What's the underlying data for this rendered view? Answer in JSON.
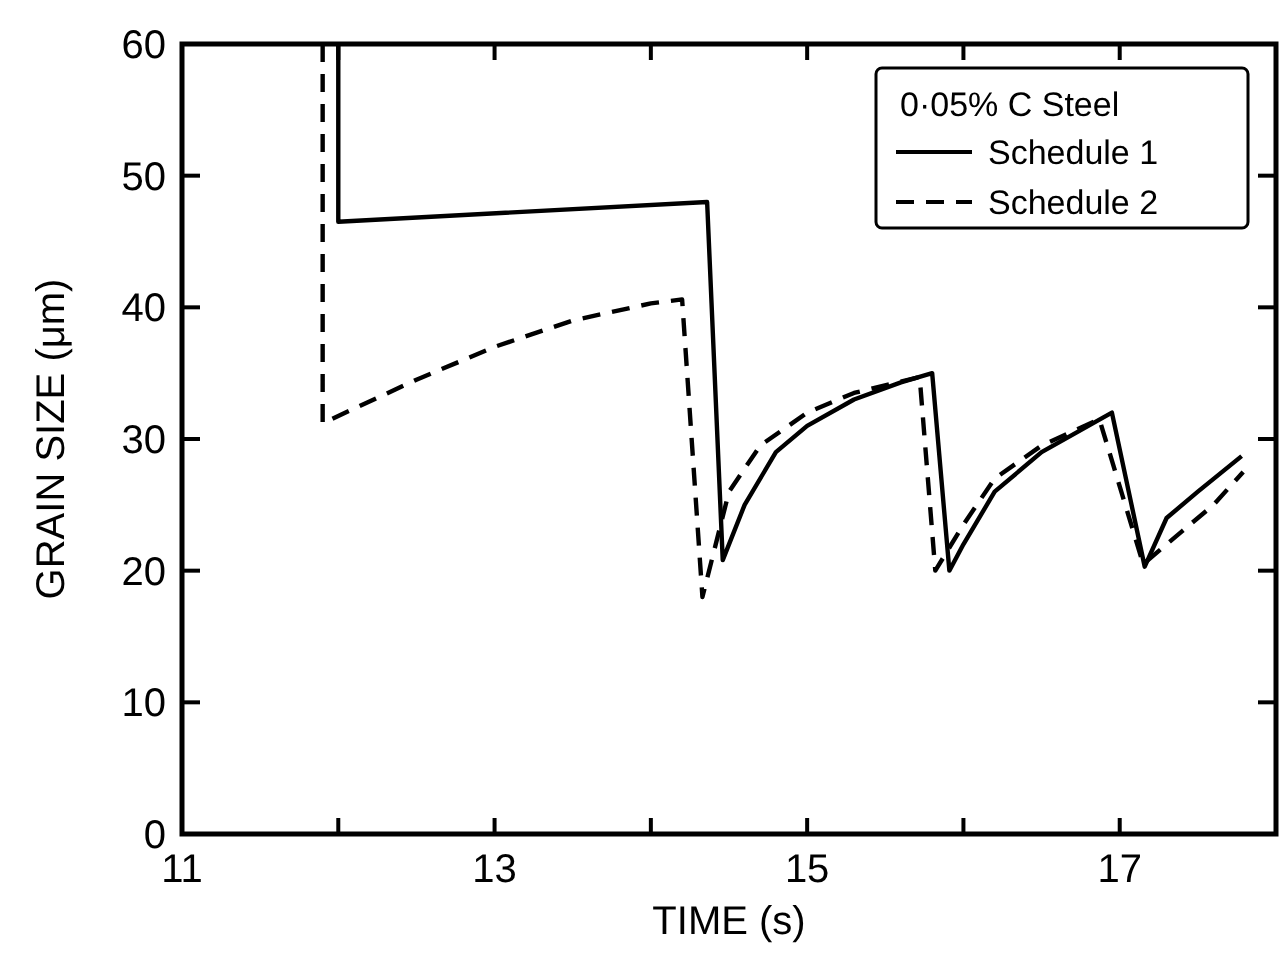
{
  "chart_data": {
    "type": "line",
    "xlabel": "TIME (s)",
    "ylabel": "GRAIN SIZE (μm)",
    "legend_title": "0·05% C Steel",
    "legend": "top right",
    "grid": false,
    "xlim": [
      11,
      18
    ],
    "xticks": [
      11,
      {
        "value": 12,
        "label": null
      },
      13,
      {
        "value": 14,
        "label": null
      },
      15,
      {
        "value": 16,
        "label": null
      },
      17
    ],
    "ylim": [
      0,
      60
    ],
    "yticks": [
      0,
      10,
      20,
      30,
      40,
      50,
      60
    ],
    "series": [
      {
        "name": "Schedule 1",
        "color": "#000000",
        "line_style": "solid",
        "x": [
          12.0,
          12.0,
          14.36,
          14.46,
          14.6,
          14.8,
          15.0,
          15.3,
          15.6,
          15.8,
          15.91,
          16.0,
          16.2,
          16.5,
          16.95,
          17.16,
          17.3,
          17.5,
          17.78
        ],
        "values": [
          60,
          46.5,
          48,
          20.8,
          25,
          29,
          31,
          33,
          34.3,
          35,
          20,
          22,
          26,
          29,
          32,
          20.3,
          24,
          26,
          28.7
        ]
      },
      {
        "name": "Schedule 2",
        "color": "#000000",
        "line_style": "dashed",
        "x": [
          11.9,
          11.9,
          12.5,
          13.0,
          13.5,
          14.0,
          14.2,
          14.33,
          14.5,
          14.7,
          15.0,
          15.3,
          15.72,
          15.82,
          16.0,
          16.2,
          16.5,
          16.87,
          17.15,
          17.4,
          17.6,
          17.79
        ],
        "values": [
          60,
          31.2,
          34.5,
          37,
          39,
          40.3,
          40.6,
          18,
          26,
          29.5,
          32,
          33.5,
          34.7,
          20,
          23.5,
          27,
          29.5,
          31.5,
          20.5,
          23,
          25,
          27.5
        ]
      }
    ]
  }
}
